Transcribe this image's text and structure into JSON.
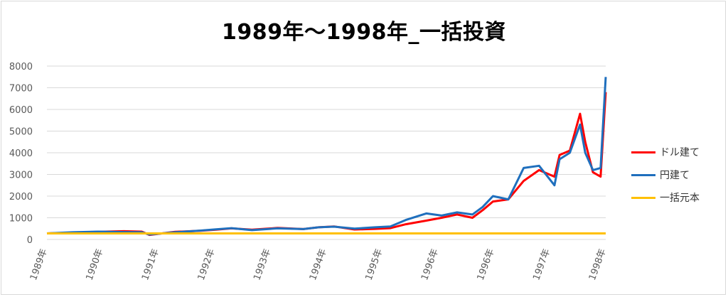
{
  "chart_data": {
    "type": "line",
    "title": "1989年～1998年_一括投資",
    "xlabel": "",
    "ylabel": "",
    "ylim": [
      0,
      8000
    ],
    "yticks": [
      0,
      1000,
      2000,
      3000,
      4000,
      5000,
      6000,
      7000,
      8000
    ],
    "x_tick_labels": [
      "1989年",
      "1990年",
      "1991年",
      "1992年",
      "1993年",
      "1994年",
      "1995年",
      "1996年",
      "1996年",
      "1997年",
      "1998年"
    ],
    "grid": true,
    "legend_position": "right",
    "x": [
      1989.0,
      1989.5,
      1990.0,
      1990.5,
      1990.85,
      1991.0,
      1991.5,
      1992.0,
      1992.3,
      1992.6,
      1993.0,
      1993.5,
      1994.0,
      1994.3,
      1994.6,
      1995.0,
      1995.4,
      1995.7,
      1996.0,
      1996.4,
      1996.7,
      1997.0,
      1997.3,
      1997.5,
      1997.7,
      1998.0,
      1998.3,
      1998.6,
      1998.9,
      1999.0,
      1999.2,
      1999.4,
      1999.5,
      1999.65,
      1999.8,
      1999.9
    ],
    "series": [
      {
        "name": "ドル建て",
        "color": "#ff0000",
        "values": [
          280,
          310,
          350,
          380,
          360,
          210,
          350,
          400,
          450,
          510,
          450,
          530,
          480,
          560,
          600,
          460,
          490,
          520,
          700,
          870,
          1000,
          1150,
          1000,
          1350,
          1750,
          1850,
          2700,
          3200,
          2900,
          3900,
          4100,
          5800,
          4500,
          3100,
          2900,
          6800
        ]
      },
      {
        "name": "円建て",
        "color": "#1f6fbd",
        "values": [
          280,
          330,
          360,
          340,
          330,
          230,
          330,
          410,
          470,
          520,
          430,
          510,
          480,
          560,
          590,
          500,
          560,
          600,
          900,
          1200,
          1100,
          1250,
          1150,
          1500,
          2000,
          1850,
          3300,
          3400,
          2500,
          3700,
          4000,
          5300,
          4000,
          3200,
          3300,
          7500
        ]
      },
      {
        "name": "一括元本",
        "color": "#ffc000",
        "values": [
          280,
          280,
          280,
          280,
          280,
          280,
          280,
          280,
          280,
          280,
          280,
          280,
          280,
          280,
          280,
          280,
          280,
          280,
          280,
          280,
          280,
          280,
          280,
          280,
          280,
          280,
          280,
          280,
          280,
          280,
          280,
          280,
          280,
          280,
          280,
          280
        ]
      }
    ]
  }
}
